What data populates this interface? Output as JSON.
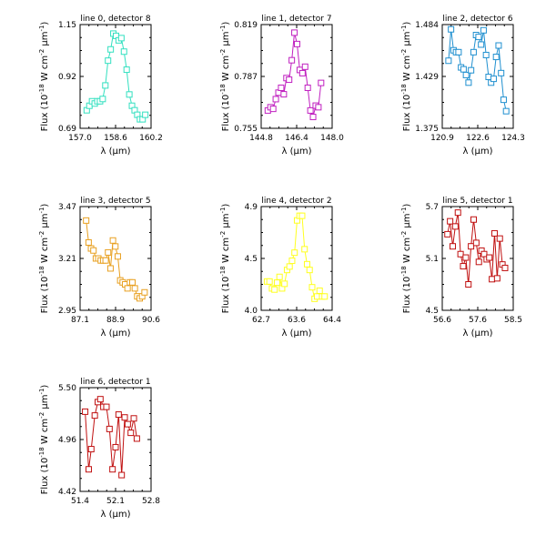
{
  "figure": {
    "background": "#ffffff"
  },
  "chart_data": [
    {
      "type": "line",
      "title": "line 0, detector 8",
      "xlabel": "λ (μm)",
      "ylabel": "Flux (10^-18 W cm^-2 μm^-1)",
      "xlim": [
        157.0,
        160.2
      ],
      "ylim": [
        0.69,
        1.15
      ],
      "xticks": [
        "157.0",
        "158.6",
        "160.2"
      ],
      "yticks": [
        "0.69",
        "0.92",
        "1.15"
      ],
      "color": "#33e0c0",
      "marker": "square",
      "series": [
        {
          "x": [
            157.3,
            157.42,
            157.54,
            157.66,
            157.78,
            157.9,
            158.02,
            158.14,
            158.26,
            158.38,
            158.5,
            158.62,
            158.74,
            158.86,
            158.98,
            159.1,
            159.22,
            159.34,
            159.46,
            159.58,
            159.7,
            159.82,
            159.94
          ],
          "y": [
            0.77,
            0.79,
            0.81,
            0.8,
            0.81,
            0.81,
            0.82,
            0.88,
            0.99,
            1.04,
            1.11,
            1.1,
            1.08,
            1.09,
            1.03,
            0.95,
            0.84,
            0.79,
            0.77,
            0.75,
            0.73,
            0.73,
            0.75
          ]
        }
      ]
    },
    {
      "type": "line",
      "title": "line 1, detector 7",
      "xlabel": "λ (μm)",
      "ylabel": "Flux (10^-18 W cm^-2 μm^-1)",
      "xlim": [
        144.8,
        148.0
      ],
      "ylim": [
        0.755,
        0.819
      ],
      "xticks": [
        "144.8",
        "146.4",
        "148.0"
      ],
      "yticks": [
        "0.755",
        "0.787",
        "0.819"
      ],
      "color": "#c020c0",
      "marker": "square",
      "series": [
        {
          "x": [
            145.1,
            145.22,
            145.34,
            145.46,
            145.58,
            145.7,
            145.82,
            145.94,
            146.06,
            146.18,
            146.3,
            146.42,
            146.54,
            146.66,
            146.78,
            146.9,
            147.02,
            147.14,
            147.26,
            147.38,
            147.5
          ],
          "y": [
            0.766,
            0.768,
            0.767,
            0.773,
            0.777,
            0.78,
            0.776,
            0.786,
            0.785,
            0.797,
            0.814,
            0.807,
            0.791,
            0.789,
            0.793,
            0.78,
            0.766,
            0.762,
            0.769,
            0.768,
            0.783
          ]
        }
      ]
    },
    {
      "type": "line",
      "title": "line 2, detector 6",
      "xlabel": "λ (μm)",
      "ylabel": "Flux (10^-18 W cm^-2 μm^-1)",
      "xlim": [
        120.9,
        124.3
      ],
      "ylim": [
        1.375,
        1.484
      ],
      "xticks": [
        "120.9",
        "122.6",
        "124.3"
      ],
      "yticks": [
        "1.375",
        "1.429",
        "1.484"
      ],
      "color": "#2090d0",
      "marker": "square",
      "series": [
        {
          "x": [
            121.2,
            121.32,
            121.44,
            121.56,
            121.68,
            121.8,
            121.92,
            122.04,
            122.16,
            122.28,
            122.4,
            122.52,
            122.64,
            122.76,
            122.88,
            123.0,
            123.12,
            123.24,
            123.36,
            123.48,
            123.6,
            123.72,
            123.84,
            123.96
          ],
          "y": [
            1.446,
            1.479,
            1.457,
            1.455,
            1.455,
            1.439,
            1.437,
            1.431,
            1.423,
            1.436,
            1.455,
            1.473,
            1.471,
            1.463,
            1.478,
            1.452,
            1.429,
            1.423,
            1.427,
            1.45,
            1.462,
            1.433,
            1.405,
            1.393
          ]
        }
      ]
    },
    {
      "type": "line",
      "title": "line 3, detector 5",
      "xlabel": "λ (μm)",
      "ylabel": "Flux (10^-18 W cm^-2 μm^-1)",
      "xlim": [
        87.1,
        90.6
      ],
      "ylim": [
        2.95,
        3.47
      ],
      "xticks": [
        "87.1",
        "88.9",
        "90.6"
      ],
      "yticks": [
        "2.95",
        "3.21",
        "3.47"
      ],
      "color": "#e8a020",
      "marker": "square",
      "series": [
        {
          "x": [
            87.4,
            87.52,
            87.64,
            87.76,
            87.88,
            88.0,
            88.12,
            88.24,
            88.36,
            88.48,
            88.6,
            88.72,
            88.84,
            88.96,
            89.08,
            89.2,
            89.32,
            89.44,
            89.56,
            89.68,
            89.8,
            89.92,
            90.04,
            90.16,
            90.28
          ],
          "y": [
            3.4,
            3.29,
            3.26,
            3.25,
            3.21,
            3.21,
            3.2,
            3.2,
            3.2,
            3.24,
            3.16,
            3.3,
            3.27,
            3.22,
            3.1,
            3.09,
            3.08,
            3.06,
            3.09,
            3.09,
            3.06,
            3.02,
            3.01,
            3.02,
            3.04
          ]
        }
      ]
    },
    {
      "type": "line",
      "title": "line 4, detector 2",
      "xlabel": "λ (μm)",
      "ylabel": "Flux (10^-18 W cm^-2 μm^-1)",
      "xlim": [
        62.7,
        64.4
      ],
      "ylim": [
        4.0,
        4.9
      ],
      "xticks": [
        "62.7",
        "63.6",
        "64.4"
      ],
      "yticks": [
        "4.0",
        "4.5",
        "4.9"
      ],
      "color": "#ffff20",
      "marker": "square",
      "series": [
        {
          "x": [
            62.84,
            62.9,
            62.96,
            63.02,
            63.08,
            63.14,
            63.2,
            63.26,
            63.32,
            63.38,
            63.44,
            63.5,
            63.56,
            63.62,
            63.68,
            63.74,
            63.8,
            63.86,
            63.92,
            63.98,
            64.04,
            64.1,
            64.16,
            64.22
          ],
          "y": [
            4.25,
            4.25,
            4.19,
            4.18,
            4.24,
            4.29,
            4.19,
            4.23,
            4.35,
            4.38,
            4.43,
            4.5,
            4.78,
            4.82,
            4.82,
            4.53,
            4.4,
            4.35,
            4.2,
            4.1,
            4.12,
            4.17,
            4.12,
            4.12
          ]
        }
      ]
    },
    {
      "type": "line",
      "title": "line 5, detector 1",
      "xlabel": "λ (μm)",
      "ylabel": "Flux (10^-18 W cm^-2 μm^-1)",
      "xlim": [
        56.6,
        58.5
      ],
      "ylim": [
        4.5,
        5.7
      ],
      "xticks": [
        "56.6",
        "57.6",
        "58.5"
      ],
      "yticks": [
        "4.5",
        "5.1",
        "5.7"
      ],
      "color": "#c01010",
      "marker": "square",
      "series": [
        {
          "x": [
            56.74,
            56.81,
            56.88,
            56.95,
            57.02,
            57.09,
            57.16,
            57.23,
            57.3,
            57.37,
            57.44,
            57.51,
            57.58,
            57.65,
            57.72,
            57.79,
            57.86,
            57.93,
            58.0,
            58.07,
            58.14,
            58.21,
            58.28
          ],
          "y": [
            5.38,
            5.53,
            5.24,
            5.47,
            5.63,
            5.15,
            5.01,
            5.11,
            4.8,
            5.24,
            5.55,
            5.28,
            5.06,
            5.19,
            5.15,
            5.09,
            5.11,
            4.86,
            5.39,
            4.87,
            5.33,
            5.03,
            4.99
          ]
        }
      ]
    },
    {
      "type": "line",
      "title": "line 6, detector 1",
      "xlabel": "λ (μm)",
      "ylabel": "Flux (10^-18 W cm^-2 μm^-1)",
      "xlim": [
        51.4,
        52.8
      ],
      "ylim": [
        4.42,
        5.5
      ],
      "xticks": [
        "51.4",
        "52.1",
        "52.8"
      ],
      "yticks": [
        "4.42",
        "4.96",
        "5.50"
      ],
      "color": "#c01010",
      "marker": "square",
      "series": [
        {
          "x": [
            51.5,
            51.57,
            51.62,
            51.69,
            51.75,
            51.8,
            51.86,
            51.92,
            51.98,
            52.04,
            52.1,
            52.16,
            52.22,
            52.28,
            52.34,
            52.4,
            52.46,
            52.52
          ],
          "y": [
            5.25,
            4.65,
            4.86,
            5.21,
            5.35,
            5.38,
            5.3,
            5.3,
            5.07,
            4.65,
            4.88,
            5.22,
            4.59,
            5.19,
            5.12,
            5.03,
            5.18,
            4.97
          ]
        }
      ]
    }
  ]
}
